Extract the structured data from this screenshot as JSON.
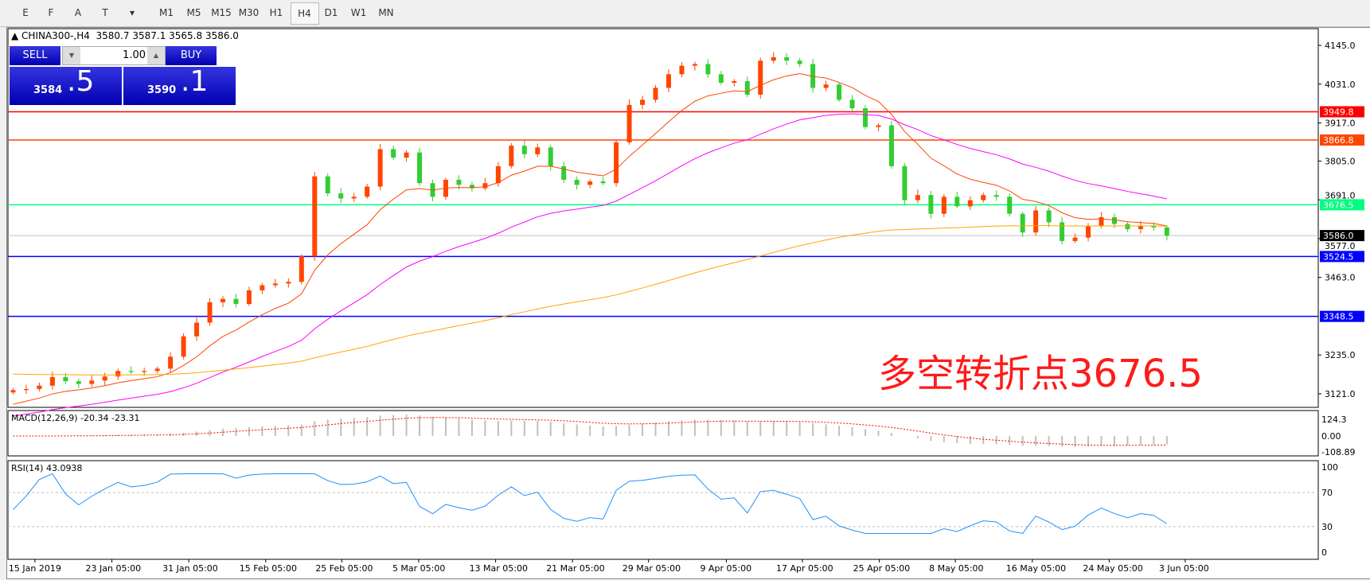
{
  "toolbar": {
    "tools": [
      {
        "icon": "fibonacci-expansion-icon",
        "label": "E"
      },
      {
        "icon": "fibonacci-fan-icon",
        "label": "F"
      },
      {
        "icon": "text-icon",
        "label": "A"
      },
      {
        "icon": "text-label-icon",
        "label": "T"
      },
      {
        "icon": "arrows-dropdown-icon",
        "label": "▾"
      }
    ],
    "timeframes": [
      "M1",
      "M5",
      "M15",
      "M30",
      "H1",
      "H4",
      "D1",
      "W1",
      "MN"
    ],
    "active": "H4"
  },
  "chart": {
    "title": "CHINA300-,H4",
    "ohlc": "3580.7 3587.1 3565.8 3586.0"
  },
  "trade": {
    "sell_label": "SELL",
    "buy_label": "BUY",
    "lot": "1.00",
    "sell_int": "3584",
    "sell_dec": ".5",
    "buy_int": "3590",
    "buy_dec": ".1"
  },
  "annotation": "多空转折点3676.5",
  "macd": {
    "label": "MACD(12,26,9) -20.34 -23.31",
    "ticks": [
      "124.3",
      "0.00",
      "-108.89"
    ]
  },
  "rsi": {
    "label": "RSI(14) 43.0938",
    "ticks": [
      "100",
      "70",
      "30",
      "0"
    ]
  },
  "colors": {
    "up": "#ff4500",
    "down": "#32cd32",
    "ma_fast": "#ff4500",
    "ma_mid": "#ff00ff",
    "ma_slow": "#ffa500"
  },
  "chart_data": {
    "type": "candlestick",
    "price_ticks": [
      4145.0,
      4031.0,
      3917.0,
      3805.0,
      3691.0,
      3577.0,
      3463.0,
      3235.0,
      3121.0
    ],
    "ylim": [
      3095,
      4190
    ],
    "levels": [
      {
        "value": "3949.8",
        "color": "#ff0000"
      },
      {
        "value": "3866.8",
        "color": "#ff4500"
      },
      {
        "value": "3676.5",
        "color": "#00ff7f"
      },
      {
        "value": "3586.0",
        "color": "#000000",
        "line": "#c0c0c0"
      },
      {
        "value": "3524.5",
        "color": "#0000ff"
      },
      {
        "value": "3348.5",
        "color": "#0000ff"
      }
    ],
    "dates": [
      "15 Jan 2019",
      "23 Jan 05:00",
      "31 Jan 05:00",
      "15 Feb 05:00",
      "25 Feb 05:00",
      "5 Mar 05:00",
      "13 Mar 05:00",
      "21 Mar 05:00",
      "29 Mar 05:00",
      "9 Apr 05:00",
      "17 Apr 05:00",
      "25 Apr 05:00",
      "8 May 05:00",
      "16 May 05:00",
      "24 May 05:00",
      "3 Jun 05:00"
    ],
    "closes": [
      3132,
      3135,
      3145,
      3170,
      3158,
      3150,
      3160,
      3172,
      3188,
      3185,
      3188,
      3195,
      3230,
      3290,
      3330,
      3390,
      3400,
      3385,
      3425,
      3440,
      3445,
      3450,
      3525,
      3760,
      3710,
      3695,
      3700,
      3730,
      3840,
      3815,
      3830,
      3740,
      3700,
      3750,
      3735,
      3725,
      3740,
      3790,
      3850,
      3825,
      3845,
      3790,
      3750,
      3735,
      3745,
      3740,
      3860,
      3970,
      3985,
      4020,
      4060,
      4085,
      4090,
      4060,
      4035,
      4040,
      4000,
      4100,
      4110,
      4100,
      4090,
      4020,
      4030,
      3985,
      3960,
      3905,
      3910,
      3790,
      3690,
      3705,
      3650,
      3700,
      3672,
      3690,
      3705,
      3700,
      3650,
      3595,
      3660,
      3625,
      3570,
      3580,
      3615,
      3640,
      3620,
      3605,
      3615,
      3610,
      3586
    ]
  }
}
